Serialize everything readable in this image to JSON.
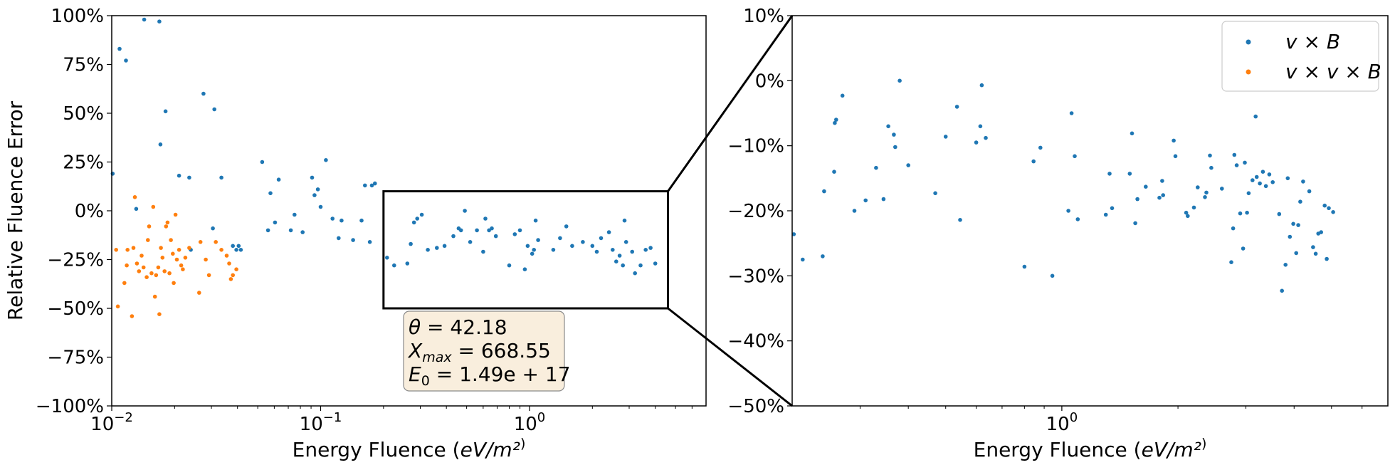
{
  "chart_data": [
    {
      "type": "scatter",
      "xscale": "log",
      "xlim": [
        0.01,
        7.0
      ],
      "ylim": [
        -100,
        100
      ],
      "xlabel": "Energy Fluence (eV/m²)",
      "ylabel": "Relative Fluence Error",
      "x_ticks": [
        {
          "value": 0.01,
          "mantissa": "10",
          "exp": "−2"
        },
        {
          "value": 0.1,
          "mantissa": "10",
          "exp": "−1"
        },
        {
          "value": 1,
          "mantissa": "10",
          "exp": "0"
        }
      ],
      "y_ticks": [
        {
          "value": -100,
          "label": "−100%"
        },
        {
          "value": -75,
          "label": "−75%"
        },
        {
          "value": -50,
          "label": "−50%"
        },
        {
          "value": -25,
          "label": "−25%"
        },
        {
          "value": 0,
          "label": "0%"
        },
        {
          "value": 25,
          "label": "25%"
        },
        {
          "value": 50,
          "label": "50%"
        },
        {
          "value": 75,
          "label": "75%"
        },
        {
          "value": 100,
          "label": "100%"
        }
      ],
      "zoom_rect": {
        "x": [
          0.2,
          4.6
        ],
        "y": [
          -50,
          10
        ]
      },
      "series": [
        {
          "name": "v × B",
          "color": "#1f77b4",
          "points": [
            [
              0.0101,
              19
            ],
            [
              0.0109,
              83
            ],
            [
              0.0117,
              77
            ],
            [
              0.0131,
              1
            ],
            [
              0.0143,
              98
            ],
            [
              0.0169,
              97
            ],
            [
              0.0171,
              34
            ],
            [
              0.0181,
              51
            ],
            [
              0.021,
              18
            ],
            [
              0.0235,
              17
            ],
            [
              0.0239,
              -20
            ],
            [
              0.0275,
              60
            ],
            [
              0.0305,
              -9
            ],
            [
              0.031,
              52
            ],
            [
              0.0335,
              17
            ],
            [
              0.038,
              -18
            ],
            [
              0.0395,
              -20
            ],
            [
              0.0405,
              -18
            ],
            [
              0.0415,
              -20
            ],
            [
              0.0525,
              25
            ],
            [
              0.056,
              -10
            ],
            [
              0.0575,
              9
            ],
            [
              0.0605,
              -6
            ],
            [
              0.063,
              16
            ],
            [
              0.072,
              -10
            ],
            [
              0.075,
              -2
            ],
            [
              0.082,
              -11
            ],
            [
              0.091,
              17
            ],
            [
              0.0935,
              8
            ],
            [
              0.097,
              11
            ],
            [
              0.1,
              2
            ],
            [
              0.106,
              26
            ],
            [
              0.114,
              -4
            ],
            [
              0.122,
              -14
            ],
            [
              0.126,
              -5
            ],
            [
              0.143,
              -15
            ],
            [
              0.157,
              -5
            ],
            [
              0.163,
              13
            ],
            [
              0.172,
              -16
            ],
            [
              0.176,
              13
            ],
            [
              0.182,
              14
            ],
            [
              0.208,
              -24
            ],
            [
              0.225,
              -28
            ],
            [
              0.26,
              -27
            ],
            [
              0.27,
              -17
            ],
            [
              0.28,
              -6
            ],
            [
              0.29,
              -4
            ],
            [
              0.305,
              -2
            ],
            [
              0.326,
              -20
            ],
            [
              0.36,
              -19
            ],
            [
              0.392,
              -18
            ],
            [
              0.432,
              -13
            ],
            [
              0.458,
              -9
            ],
            [
              0.47,
              -10
            ],
            [
              0.49,
              0
            ],
            [
              0.52,
              -16
            ],
            [
              0.56,
              -10
            ],
            [
              0.6,
              -21
            ],
            [
              0.615,
              -4
            ],
            [
              0.64,
              -10
            ],
            [
              0.66,
              -9
            ],
            [
              0.69,
              -13
            ],
            [
              0.8,
              -28
            ],
            [
              0.85,
              -12
            ],
            [
              0.9,
              -10
            ],
            [
              0.95,
              -30
            ],
            [
              0.98,
              -18
            ],
            [
              1.03,
              -22
            ],
            [
              1.05,
              -20
            ],
            [
              1.07,
              -5
            ],
            [
              1.1,
              -15
            ],
            [
              1.3,
              -20
            ],
            [
              1.4,
              -14
            ],
            [
              1.5,
              -8
            ],
            [
              1.6,
              -18
            ],
            [
              1.8,
              -16
            ],
            [
              2.0,
              -18
            ],
            [
              2.1,
              -21
            ],
            [
              2.2,
              -14
            ],
            [
              2.4,
              -11
            ],
            [
              2.5,
              -20
            ],
            [
              2.6,
              -26
            ],
            [
              2.7,
              -23
            ],
            [
              2.8,
              -28
            ],
            [
              2.85,
              -5
            ],
            [
              2.9,
              -16
            ],
            [
              3.1,
              -21
            ],
            [
              3.2,
              -32
            ],
            [
              3.4,
              -28
            ],
            [
              3.6,
              -20
            ],
            [
              3.8,
              -19
            ],
            [
              4.0,
              -27
            ]
          ]
        },
        {
          "name": "v × v × B",
          "color": "#ff7f0e",
          "points": [
            [
              0.0105,
              -20
            ],
            [
              0.0107,
              -49
            ],
            [
              0.0115,
              -37
            ],
            [
              0.0118,
              -28
            ],
            [
              0.0119,
              -20
            ],
            [
              0.0125,
              -54
            ],
            [
              0.0127,
              -19
            ],
            [
              0.0129,
              7
            ],
            [
              0.0132,
              -27
            ],
            [
              0.0135,
              -31
            ],
            [
              0.0139,
              -23
            ],
            [
              0.0142,
              -29
            ],
            [
              0.0147,
              -34
            ],
            [
              0.0149,
              -15
            ],
            [
              0.0151,
              -8
            ],
            [
              0.0155,
              -32
            ],
            [
              0.0158,
              2
            ],
            [
              0.0161,
              -44
            ],
            [
              0.0163,
              -33
            ],
            [
              0.0167,
              -29
            ],
            [
              0.0169,
              -53
            ],
            [
              0.0172,
              -19
            ],
            [
              0.0175,
              -24
            ],
            [
              0.0179,
              -31
            ],
            [
              0.0182,
              -8
            ],
            [
              0.0185,
              -6
            ],
            [
              0.0189,
              -32
            ],
            [
              0.0192,
              -15
            ],
            [
              0.0196,
              -22
            ],
            [
              0.0198,
              -37
            ],
            [
              0.0202,
              -2
            ],
            [
              0.0205,
              -25
            ],
            [
              0.021,
              -20
            ],
            [
              0.0215,
              -28
            ],
            [
              0.0219,
              -30
            ],
            [
              0.0225,
              -24
            ],
            [
              0.0235,
              -19
            ],
            [
              0.0262,
              -42
            ],
            [
              0.0266,
              -16
            ],
            [
              0.0282,
              -25
            ],
            [
              0.0292,
              -33
            ],
            [
              0.0315,
              -16
            ],
            [
              0.0335,
              -20
            ],
            [
              0.0355,
              -23
            ],
            [
              0.0365,
              -27
            ],
            [
              0.0372,
              -35
            ],
            [
              0.038,
              -33
            ],
            [
              0.0395,
              -30
            ]
          ]
        }
      ],
      "annotation": {
        "theta": "42.18",
        "xmax": "668.55",
        "e0": "1.49e + 17"
      }
    },
    {
      "type": "scatter",
      "xscale": "log",
      "xlim": [
        0.2,
        7.0
      ],
      "ylim": [
        -50,
        10
      ],
      "xlabel": "Energy Fluence (eV/m²)",
      "x_ticks": [
        {
          "value": 1,
          "mantissa": "10",
          "exp": "0"
        }
      ],
      "y_ticks": [
        {
          "value": -50,
          "label": "−50%"
        },
        {
          "value": -40,
          "label": "−40%"
        },
        {
          "value": -30,
          "label": "−30%"
        },
        {
          "value": -20,
          "label": "−20%"
        },
        {
          "value": -10,
          "label": "−10%"
        },
        {
          "value": 0,
          "label": "0%"
        },
        {
          "value": 10,
          "label": "10%"
        }
      ],
      "legend": {
        "position": "top-right"
      },
      "series": [
        {
          "name": "v × B",
          "color": "#1f77b4",
          "points": [
            [
              0.202,
              -23.6
            ],
            [
              0.213,
              -27.5
            ],
            [
              0.24,
              -27
            ],
            [
              0.242,
              -17
            ],
            [
              0.257,
              -14
            ],
            [
              0.258,
              -6.5
            ],
            [
              0.26,
              -6
            ],
            [
              0.27,
              -2.3
            ],
            [
              0.29,
              -20
            ],
            [
              0.31,
              -18.4
            ],
            [
              0.33,
              -13.4
            ],
            [
              0.345,
              -18.2
            ],
            [
              0.355,
              -7
            ],
            [
              0.367,
              -8.3
            ],
            [
              0.37,
              -10.2
            ],
            [
              0.38,
              0
            ],
            [
              0.4,
              -13
            ],
            [
              0.47,
              -17.3
            ],
            [
              0.5,
              -8.6
            ],
            [
              0.535,
              -4
            ],
            [
              0.545,
              -21.4
            ],
            [
              0.6,
              -9.5
            ],
            [
              0.615,
              -7
            ],
            [
              0.62,
              -0.7
            ],
            [
              0.635,
              -8.8
            ],
            [
              0.8,
              -28.6
            ],
            [
              0.845,
              -12.4
            ],
            [
              0.88,
              -10.3
            ],
            [
              0.945,
              -30
            ],
            [
              1.04,
              -20
            ],
            [
              1.06,
              -5
            ],
            [
              1.08,
              -11.6
            ],
            [
              1.1,
              -21.3
            ],
            [
              1.3,
              -20.6
            ],
            [
              1.33,
              -14.3
            ],
            [
              1.35,
              -19.6
            ],
            [
              1.5,
              -14.3
            ],
            [
              1.52,
              -8.1
            ],
            [
              1.55,
              -21.9
            ],
            [
              1.57,
              -18.2
            ],
            [
              1.65,
              -16.3
            ],
            [
              1.79,
              -18
            ],
            [
              1.82,
              -15.4
            ],
            [
              1.83,
              -17.6
            ],
            [
              1.95,
              -9.2
            ],
            [
              1.97,
              -11.6
            ],
            [
              2.1,
              -20.3
            ],
            [
              2.12,
              -20.8
            ],
            [
              2.2,
              -19.5
            ],
            [
              2.25,
              -16.4
            ],
            [
              2.35,
              -17.9
            ],
            [
              2.37,
              -17.2
            ],
            [
              2.42,
              -11.5
            ],
            [
              2.44,
              -13.4
            ],
            [
              2.6,
              -16.6
            ],
            [
              2.75,
              -27.9
            ],
            [
              2.78,
              -22.7
            ],
            [
              2.8,
              -11.4
            ],
            [
              2.84,
              -13
            ],
            [
              2.9,
              -20.4
            ],
            [
              2.95,
              -25.8
            ],
            [
              2.98,
              -12.6
            ],
            [
              3.02,
              -20.3
            ],
            [
              3.05,
              -17.3
            ],
            [
              3.12,
              -15.3
            ],
            [
              3.18,
              -5.5
            ],
            [
              3.2,
              -14.8
            ],
            [
              3.26,
              -15.8
            ],
            [
              3.32,
              -14
            ],
            [
              3.38,
              -16.2
            ],
            [
              3.45,
              -14.4
            ],
            [
              3.52,
              -15.6
            ],
            [
              3.66,
              -20.5
            ],
            [
              3.72,
              -32.3
            ],
            [
              3.8,
              -28.3
            ],
            [
              3.85,
              -15
            ],
            [
              3.9,
              -24
            ],
            [
              3.98,
              -22
            ],
            [
              4.05,
              -26.5
            ],
            [
              4.1,
              -22.2
            ],
            [
              4.15,
              -18.6
            ],
            [
              4.22,
              -15.5
            ],
            [
              4.38,
              -17
            ],
            [
              4.48,
              -25.6
            ],
            [
              4.55,
              -26.6
            ],
            [
              4.62,
              -23.5
            ],
            [
              4.7,
              -23.3
            ],
            [
              4.8,
              -19.2
            ],
            [
              4.86,
              -27.4
            ],
            [
              4.92,
              -19.6
            ],
            [
              5.05,
              -20.2
            ]
          ]
        }
      ]
    }
  ],
  "legend_items": [
    {
      "text": "v × B",
      "color": "#1f77b4"
    },
    {
      "text": "v × v × B",
      "color": "#ff7f0e"
    }
  ]
}
